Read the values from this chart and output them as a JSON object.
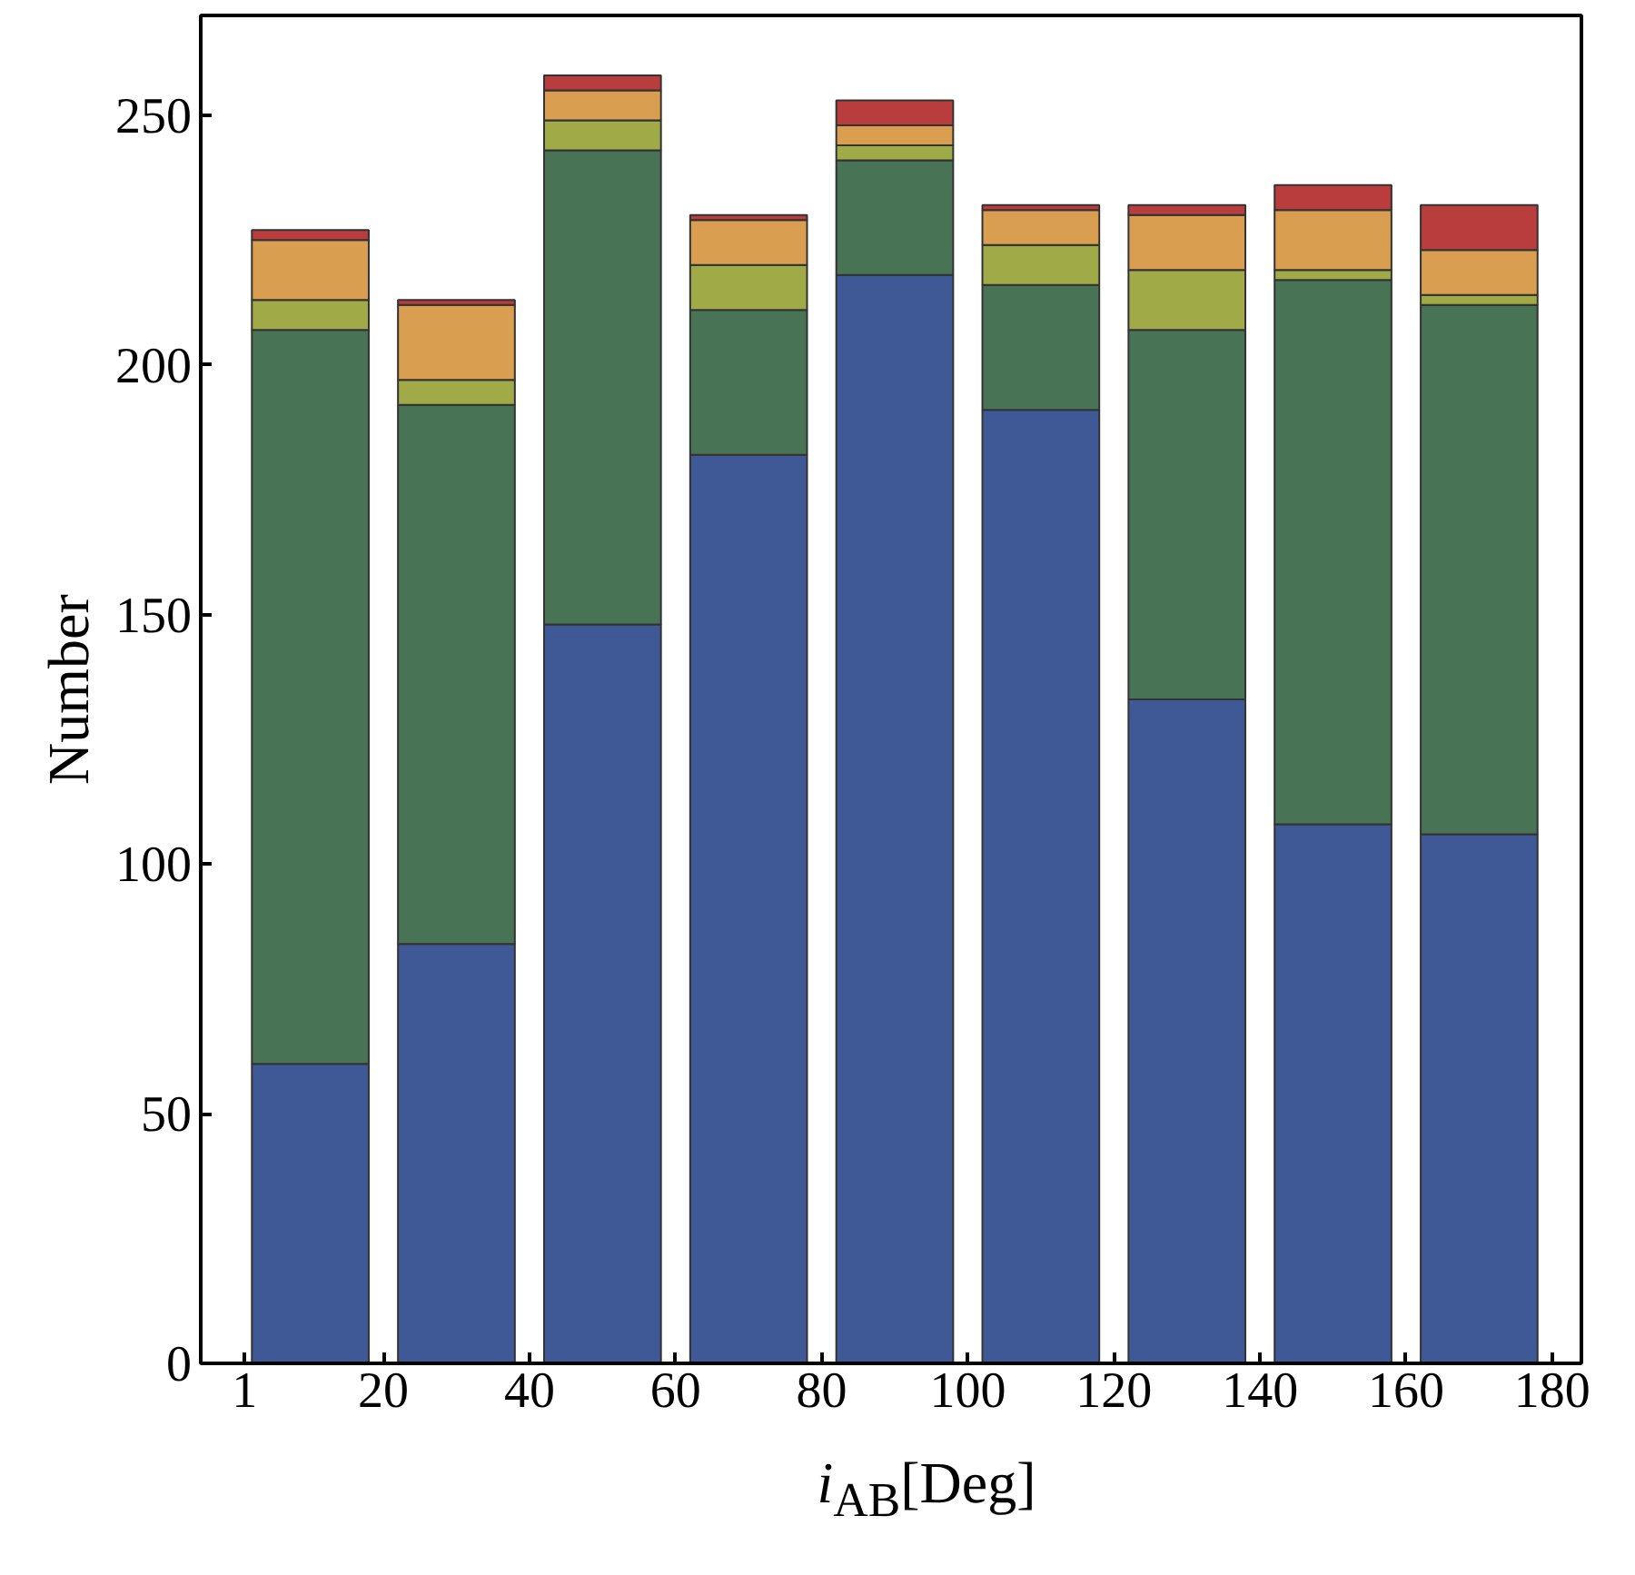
{
  "chart_data": {
    "type": "bar",
    "stacked": true,
    "xlabel": "i$_{AB}$[Deg]",
    "ylabel": "Number",
    "x": [
      10,
      30,
      50,
      70,
      90,
      110,
      130,
      150,
      170
    ],
    "series": [
      {
        "color": "#3f5896",
        "values": [
          60,
          84,
          148,
          182,
          218,
          191,
          133,
          108,
          106
        ]
      },
      {
        "color": "#487355",
        "values": [
          147,
          108,
          95,
          29,
          23,
          25,
          74,
          109,
          106
        ]
      },
      {
        "color": "#a0aa46",
        "values": [
          6,
          5,
          6,
          9,
          3,
          8,
          12,
          2,
          2
        ]
      },
      {
        "color": "#d99e50",
        "values": [
          12,
          15,
          6,
          9,
          4,
          7,
          11,
          12,
          9
        ]
      },
      {
        "color": "#ba3d3d",
        "values": [
          2,
          1,
          3,
          1,
          5,
          1,
          2,
          5,
          9
        ]
      }
    ],
    "xlim": [
      -5,
      184
    ],
    "ylim": [
      0,
      270
    ],
    "xticks": [
      1,
      20,
      40,
      60,
      80,
      100,
      120,
      140,
      160,
      180
    ],
    "yticks": [
      0,
      50,
      100,
      150,
      200,
      250
    ],
    "grid": false
  }
}
